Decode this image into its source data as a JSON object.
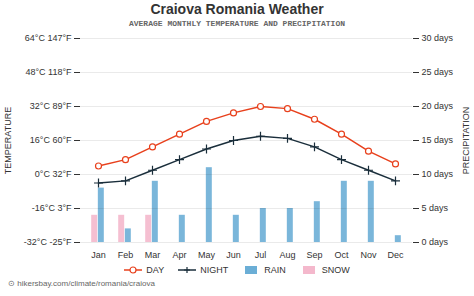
{
  "chart_data": {
    "type": "combo",
    "title": "Craiova Romania Weather",
    "subtitle": "AVERAGE MONTHLY TEMPERATURE AND PRECIPITATION",
    "caption": "⊙ hikersbay.com/climate/romania/craiova",
    "ylabel": "TEMPERATURE",
    "y2label": "PRECIPITATION",
    "categories": [
      "Jan",
      "Feb",
      "Mar",
      "Apr",
      "May",
      "Jun",
      "Jul",
      "Aug",
      "Sep",
      "Oct",
      "Nov",
      "Dec"
    ],
    "series": [
      {
        "name": "DAY",
        "type": "line",
        "color": "#e8401c",
        "marker": "o",
        "values": [
          4,
          7,
          13,
          19,
          25,
          29,
          32,
          31,
          26,
          19,
          11,
          5
        ]
      },
      {
        "name": "NIGHT",
        "type": "line",
        "color": "#1a2e3b",
        "marker": "+",
        "values": [
          -4,
          -3,
          2,
          7,
          12,
          16,
          18,
          17,
          13,
          7,
          2,
          -3
        ]
      },
      {
        "name": "RAIN",
        "type": "bar",
        "axis": "y2",
        "color": "#6baed6",
        "values": [
          8,
          2,
          9,
          4,
          11,
          4,
          5,
          5,
          6,
          9,
          9,
          1
        ]
      },
      {
        "name": "SNOW",
        "type": "bar",
        "axis": "y2",
        "color": "#f4b8cc",
        "values": [
          4,
          4,
          4,
          0,
          0,
          0,
          0,
          0,
          0,
          0,
          0,
          0
        ]
      }
    ],
    "ylim": [
      -32,
      64
    ],
    "yticks": [
      {
        "value": -32,
        "label": "-32°C -25°F"
      },
      {
        "value": -16,
        "label": "-16°C 3°F"
      },
      {
        "value": 0,
        "label": "0°C 32°F"
      },
      {
        "value": 16,
        "label": "16°C 60°F"
      },
      {
        "value": 32,
        "label": "32°C 89°F"
      },
      {
        "value": 48,
        "label": "48°C 118°F"
      },
      {
        "value": 64,
        "label": "64°C 147°F"
      }
    ],
    "y2lim": [
      0,
      30
    ],
    "y2ticks": [
      {
        "value": 0,
        "label": "0 days"
      },
      {
        "value": 5,
        "label": "5 days"
      },
      {
        "value": 10,
        "label": "10 days"
      },
      {
        "value": 15,
        "label": "15 days"
      },
      {
        "value": 20,
        "label": "20 days"
      },
      {
        "value": 25,
        "label": "25 days"
      },
      {
        "value": 30,
        "label": "30 days"
      }
    ],
    "grid": true,
    "legend": "bottom"
  }
}
